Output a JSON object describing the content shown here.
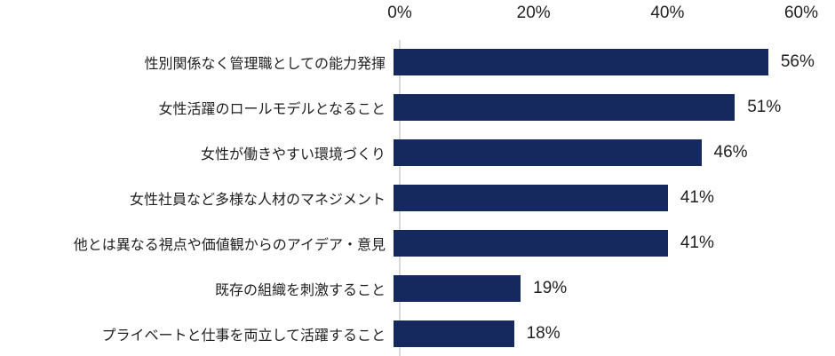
{
  "chart_data": {
    "type": "bar",
    "orientation": "horizontal",
    "title": "",
    "xlabel": "",
    "ylabel": "",
    "categories": [
      "性別関係なく管理職としての能力発揮",
      "女性活躍のロールモデルとなること",
      "女性が働きやすい環境づくり",
      "女性社員など多様な人材のマネジメント",
      "他とは異なる視点や価値観からのアイデア・意見",
      "既存の組織を刺激すること",
      "プライベートと仕事を両立して活躍すること"
    ],
    "values": [
      56,
      51,
      46,
      41,
      41,
      19,
      18
    ],
    "value_labels": [
      "56%",
      "51%",
      "46%",
      "41%",
      "41%",
      "19%",
      "18%"
    ],
    "xlim": [
      0,
      60
    ],
    "x_ticks": [
      "0%",
      "20%",
      "40%",
      "60%"
    ],
    "x_tick_values": [
      0,
      20,
      40,
      60
    ],
    "tick_position": "top",
    "grid": false,
    "legend": false,
    "colors": {
      "bar": "#16295F",
      "axis_line": "#D9D9D9",
      "text": "#1F1F1F",
      "background": "#FFFFFF"
    }
  }
}
